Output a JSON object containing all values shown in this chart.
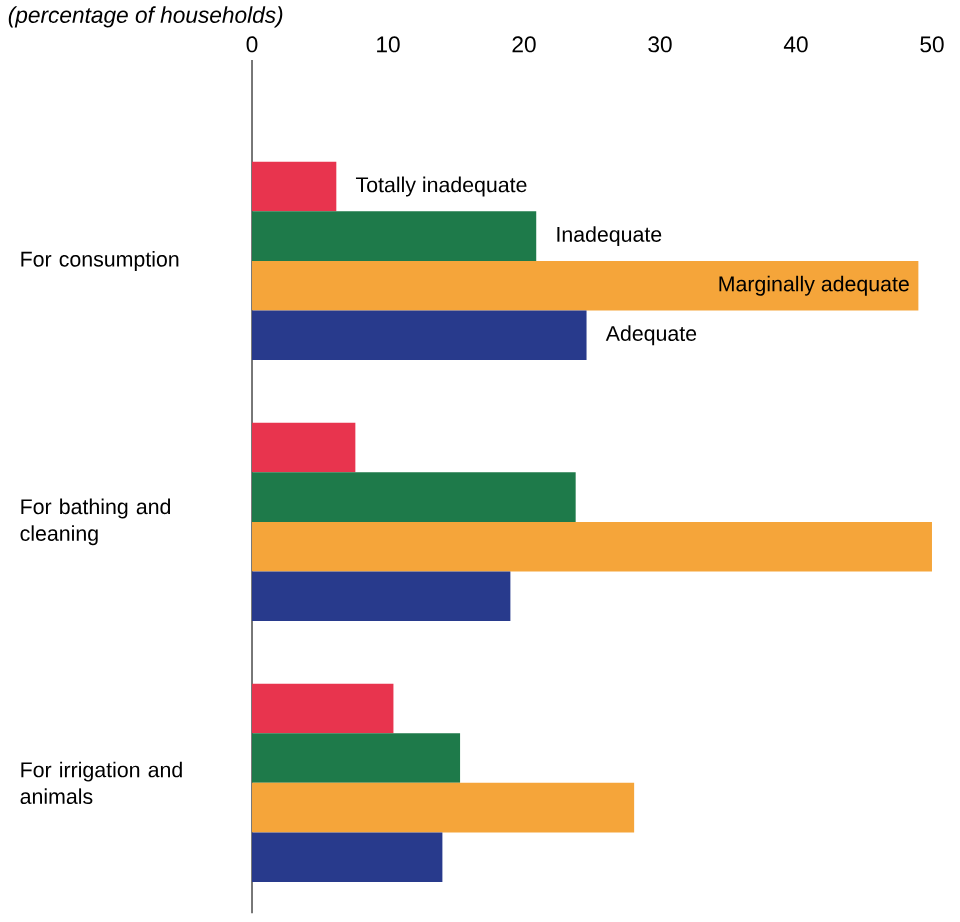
{
  "chart_data": {
    "type": "bar",
    "orientation": "horizontal",
    "xlabel": "(percentage of households)",
    "categories": [
      "For consumption",
      "For bathing and cleaning",
      "For irrigation and animals"
    ],
    "series": [
      {
        "name": "Totally inadequate",
        "color": "#e8344e",
        "values": [
          6.2,
          7.6,
          10.4
        ]
      },
      {
        "name": "Inadequate",
        "color": "#1e7a4a",
        "values": [
          20.9,
          23.8,
          15.3
        ]
      },
      {
        "name": "Marginally adequate",
        "color": "#f5a53a",
        "values": [
          49,
          50,
          28.1
        ]
      },
      {
        "name": "Adequate",
        "color": "#283a8c",
        "values": [
          24.6,
          19,
          14
        ]
      }
    ],
    "xlim": [
      0,
      50
    ],
    "xticks": [
      0,
      10,
      20,
      30,
      40,
      50
    ],
    "grid": false
  }
}
